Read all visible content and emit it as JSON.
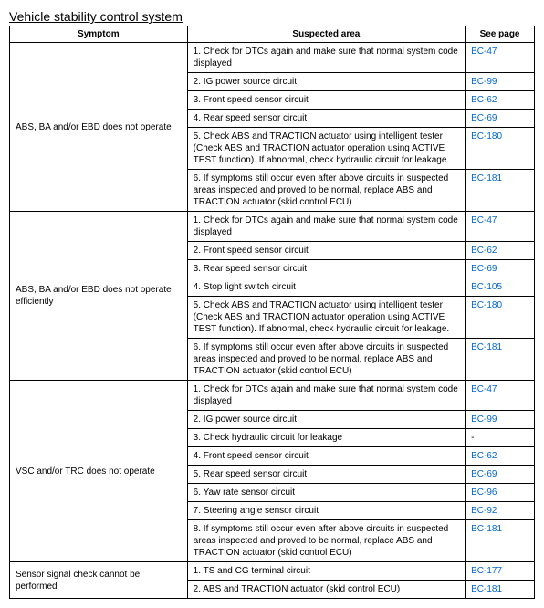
{
  "title": "Vehicle stability control system",
  "headers": {
    "symptom": "Symptom",
    "area": "Suspected area",
    "page": "See page"
  },
  "rows": [
    {
      "symptom": "ABS, BA and/or EBD does not operate",
      "items": [
        {
          "area": "1. Check for DTCs again and make sure that normal system code displayed",
          "page": "BC-47"
        },
        {
          "area": "2. IG power source circuit",
          "page": "BC-99"
        },
        {
          "area": "3. Front speed sensor circuit",
          "page": "BC-62"
        },
        {
          "area": "4. Rear speed sensor circuit",
          "page": "BC-69"
        },
        {
          "area": "5. Check ABS and TRACTION actuator using intelligent tester (Check ABS and TRACTION actuator operation using ACTIVE TEST function). If abnormal, check hydraulic circuit for leakage.",
          "page": "BC-180"
        },
        {
          "area": "6. If symptoms still occur even after above circuits in suspected areas inspected and proved to be normal, replace ABS and TRACTION actuator (skid control ECU)",
          "page": "BC-181"
        }
      ]
    },
    {
      "symptom": "ABS, BA and/or EBD does not operate efficiently",
      "items": [
        {
          "area": "1. Check for DTCs again and make sure that normal system code displayed",
          "page": "BC-47"
        },
        {
          "area": "2. Front speed sensor circuit",
          "page": "BC-62"
        },
        {
          "area": "3. Rear speed sensor circuit",
          "page": "BC-69"
        },
        {
          "area": "4. Stop light switch circuit",
          "page": "BC-105"
        },
        {
          "area": "5. Check ABS and TRACTION actuator using intelligent tester (Check ABS and TRACTION actuator operation using ACTIVE TEST function). If abnormal, check hydraulic circuit for leakage.",
          "page": "BC-180"
        },
        {
          "area": "6. If symptoms still occur even after above circuits in suspected areas inspected and proved to be normal, replace ABS and TRACTION actuator (skid control ECU)",
          "page": "BC-181"
        }
      ]
    },
    {
      "symptom": "VSC and/or TRC does not operate",
      "items": [
        {
          "area": "1. Check for DTCs again and make sure that normal system code displayed",
          "page": "BC-47"
        },
        {
          "area": "2. IG power source circuit",
          "page": "BC-99"
        },
        {
          "area": "3. Check hydraulic circuit for leakage",
          "page": "-"
        },
        {
          "area": "4. Front speed sensor circuit",
          "page": "BC-62"
        },
        {
          "area": "5. Rear speed sensor circuit",
          "page": "BC-69"
        },
        {
          "area": "6. Yaw rate sensor circuit",
          "page": "BC-96"
        },
        {
          "area": "7. Steering angle sensor circuit",
          "page": "BC-92"
        },
        {
          "area": "8. If symptoms still occur even after above circuits in suspected areas inspected and proved to be normal, replace ABS and TRACTION actuator (skid control ECU)",
          "page": "BC-181"
        }
      ]
    },
    {
      "symptom": "Sensor signal check cannot be performed",
      "items": [
        {
          "area": "1. TS and CG terminal circuit",
          "page": "BC-177"
        },
        {
          "area": "2. ABS and TRACTION actuator (skid control ECU)",
          "page": "BC-181"
        }
      ]
    }
  ]
}
